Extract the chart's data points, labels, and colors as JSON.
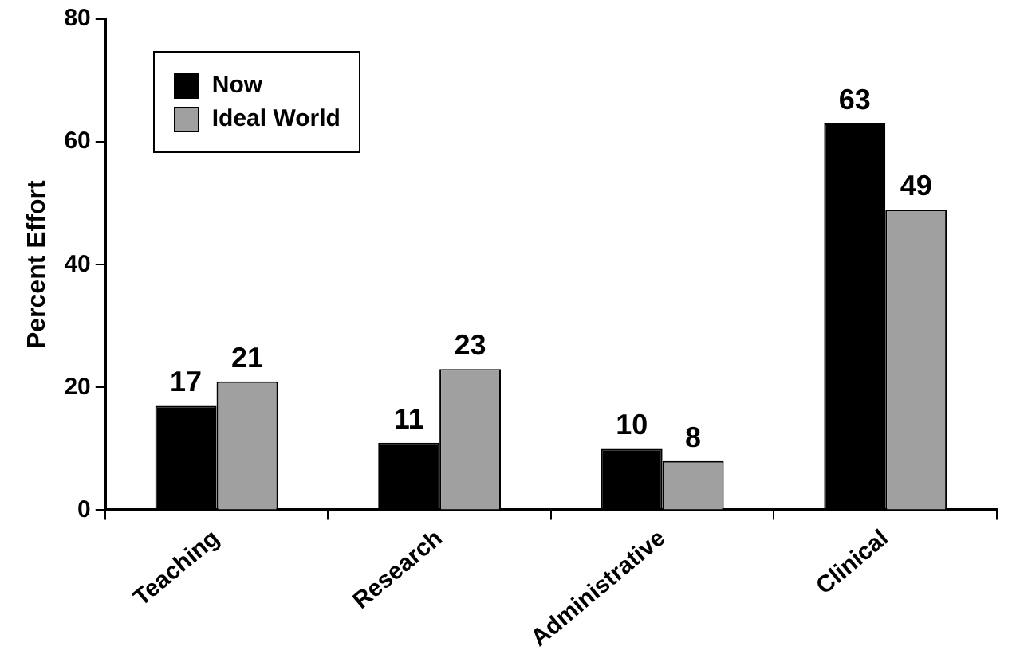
{
  "chart_data": {
    "type": "bar",
    "ylabel": "Percent Effort",
    "categories": [
      "Teaching",
      "Research",
      "Administrative",
      "Clinical"
    ],
    "series": [
      {
        "name": "Now",
        "color": "#000000",
        "values": [
          17,
          11,
          10,
          63
        ]
      },
      {
        "name": "Ideal World",
        "color": "#a0a0a0",
        "values": [
          21,
          23,
          8,
          49
        ]
      }
    ],
    "ylim": [
      0,
      80
    ],
    "yticks": [
      0,
      20,
      40,
      60,
      80
    ],
    "grid": false,
    "legend": "top left",
    "data_labels": true
  }
}
